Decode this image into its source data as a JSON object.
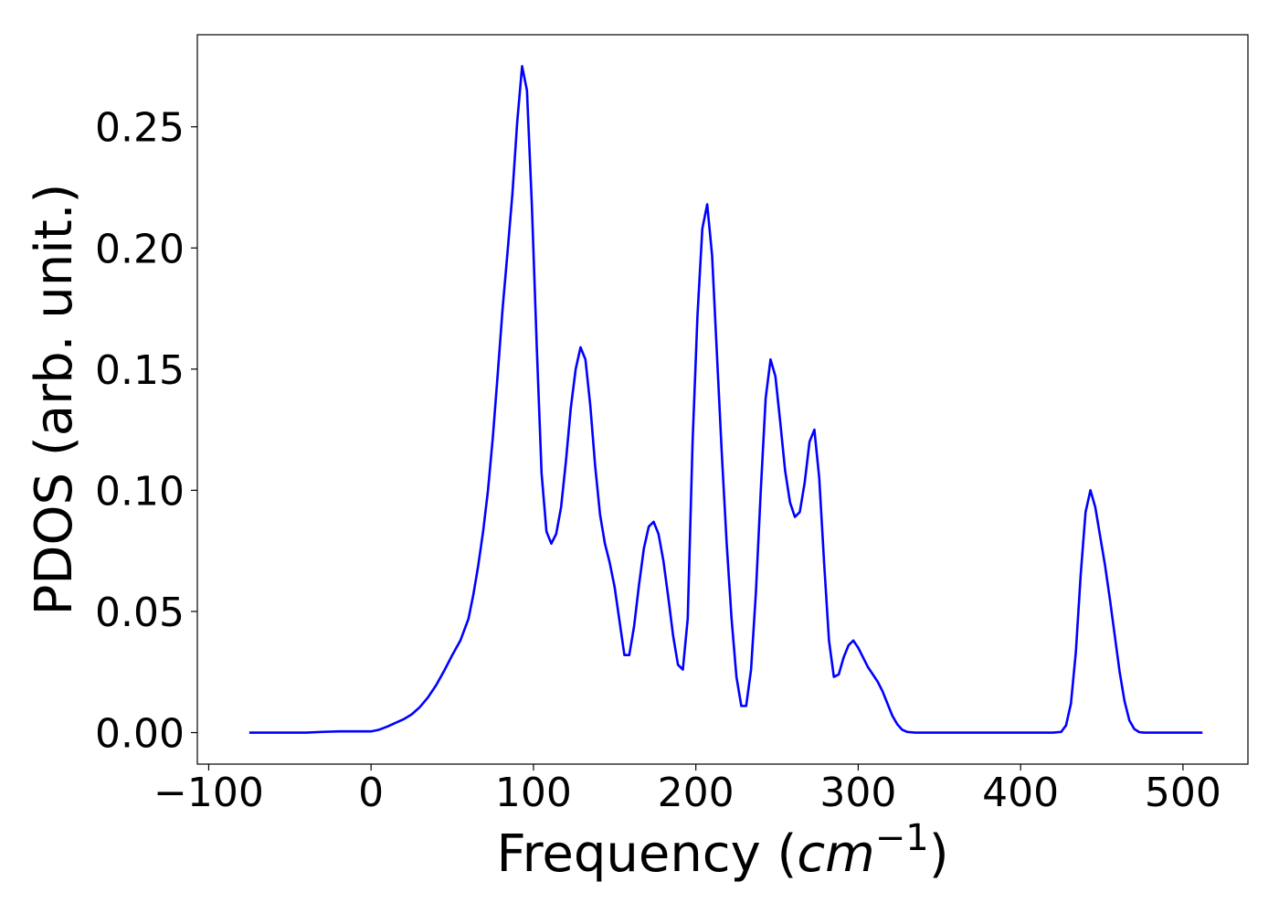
{
  "chart_data": {
    "type": "line",
    "title": "",
    "xlabel_main": "Frequency (",
    "xlabel_math_base": "cm",
    "xlabel_math_exp": "−1",
    "xlabel_close": ")",
    "ylabel": "PDOS (arb. unit.)",
    "xlim": [
      -107,
      540
    ],
    "ylim": [
      -0.013,
      0.288
    ],
    "xticks": [
      -100,
      0,
      100,
      200,
      300,
      400,
      500
    ],
    "xtick_labels": [
      "−100",
      "0",
      "100",
      "200",
      "300",
      "400",
      "500"
    ],
    "yticks": [
      0.0,
      0.05,
      0.1,
      0.15,
      0.2,
      0.25
    ],
    "ytick_labels": [
      "0.00",
      "0.05",
      "0.10",
      "0.15",
      "0.20",
      "0.25"
    ],
    "grid": false,
    "line_color": "#0000ff",
    "series": [
      {
        "x": [
          -75,
          -40,
          -30,
          -20,
          -10,
          0,
          5,
          10,
          15,
          20,
          25,
          30,
          35,
          40,
          45,
          50,
          55,
          60,
          63,
          66,
          69,
          72,
          75,
          78,
          81,
          84,
          87,
          90,
          93,
          96,
          99,
          102,
          105,
          108,
          111,
          114,
          117,
          120,
          123,
          126,
          129,
          132,
          135,
          138,
          141,
          144,
          147,
          150,
          153,
          156,
          159,
          162,
          165,
          168,
          171,
          174,
          177,
          180,
          183,
          186,
          189,
          192,
          195,
          198,
          201,
          204,
          207,
          210,
          213,
          216,
          219,
          222,
          225,
          228,
          231,
          234,
          237,
          240,
          243,
          246,
          249,
          252,
          255,
          258,
          261,
          264,
          267,
          270,
          273,
          276,
          279,
          282,
          285,
          288,
          291,
          294,
          297,
          300,
          303,
          306,
          309,
          312,
          315,
          318,
          321,
          324,
          327,
          330,
          335,
          340,
          350,
          400,
          420,
          425,
          428,
          431,
          434,
          437,
          440,
          443,
          446,
          449,
          452,
          455,
          458,
          461,
          464,
          467,
          470,
          473,
          476,
          480,
          490,
          500,
          512
        ],
        "values": [
          0.0,
          0.0,
          0.0003,
          0.0005,
          0.0005,
          0.0005,
          0.0012,
          0.0025,
          0.004,
          0.0055,
          0.0075,
          0.0105,
          0.0145,
          0.0195,
          0.0255,
          0.032,
          0.038,
          0.047,
          0.057,
          0.069,
          0.083,
          0.1,
          0.122,
          0.148,
          0.175,
          0.198,
          0.222,
          0.252,
          0.275,
          0.265,
          0.218,
          0.16,
          0.107,
          0.083,
          0.078,
          0.082,
          0.093,
          0.112,
          0.134,
          0.15,
          0.159,
          0.154,
          0.135,
          0.11,
          0.09,
          0.078,
          0.07,
          0.06,
          0.046,
          0.032,
          0.032,
          0.044,
          0.061,
          0.076,
          0.085,
          0.087,
          0.082,
          0.071,
          0.056,
          0.04,
          0.028,
          0.026,
          0.047,
          0.12,
          0.172,
          0.208,
          0.218,
          0.197,
          0.156,
          0.115,
          0.078,
          0.047,
          0.023,
          0.011,
          0.011,
          0.026,
          0.058,
          0.1,
          0.138,
          0.154,
          0.147,
          0.128,
          0.108,
          0.095,
          0.089,
          0.091,
          0.103,
          0.12,
          0.125,
          0.105,
          0.07,
          0.038,
          0.023,
          0.024,
          0.031,
          0.036,
          0.038,
          0.035,
          0.031,
          0.027,
          0.024,
          0.021,
          0.017,
          0.012,
          0.007,
          0.0035,
          0.0012,
          0.0003,
          0.0,
          0.0,
          0.0,
          0.0,
          0.0,
          0.0003,
          0.003,
          0.012,
          0.033,
          0.065,
          0.091,
          0.1,
          0.093,
          0.081,
          0.069,
          0.055,
          0.04,
          0.025,
          0.013,
          0.005,
          0.0015,
          0.0002,
          0.0,
          0.0,
          0.0,
          0.0,
          0.0
        ]
      }
    ]
  }
}
